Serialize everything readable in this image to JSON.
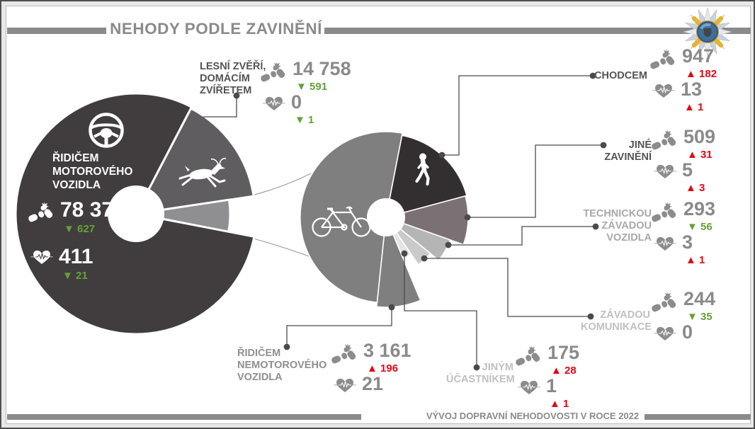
{
  "frame": {
    "title": "NEHODY PODLE ZAVINĚNÍ",
    "footer": "VÝVOJ DOPRAVNÍ NEHODOVOSTI V ROCE 2022"
  },
  "colors": {
    "green": "#65a138",
    "red": "#e30613",
    "number_gray": "#8a8a8a",
    "bar_gray": "#8a8a8a",
    "donut_motor": "#413d3e",
    "donut_lesni": "#5f5d60",
    "donut_rest": "#8f8f92",
    "donut_nemotor": "#7f7f7f",
    "donut_chodcem": "#332e30",
    "donut_jine": "#7b7175",
    "donut_technickou": "#b5b5b5",
    "donut_zavadou": "#cacaca",
    "donut_jinym": "#e4e4e4"
  },
  "stats": {
    "motor": {
      "label": "ŘIDIČEM\nMOTOROVÉHO\nVOZIDLA",
      "accidents": "78 373",
      "accidents_delta": "627",
      "accidents_dir": "down",
      "deaths": "411",
      "deaths_delta": "21",
      "deaths_dir": "down"
    },
    "lesni": {
      "label": "LESNÍ ZVĚŘÍ,\nDOMÁCÍM\nZVÍŘETEM",
      "accidents": "14 758",
      "accidents_delta": "591",
      "accidents_dir": "down",
      "deaths": "0",
      "deaths_delta": "1",
      "deaths_dir": "down"
    },
    "nemotor": {
      "label": "ŘIDIČEM\nNEMOTOROVÉHO\nVOZIDLA",
      "accidents": "3 161",
      "accidents_delta": "196",
      "accidents_dir": "up",
      "deaths": "21",
      "deaths_delta": null,
      "deaths_dir": null
    },
    "chodcem": {
      "label": "CHODCEM",
      "accidents": "947",
      "accidents_delta": "182",
      "accidents_dir": "up",
      "deaths": "13",
      "deaths_delta": "1",
      "deaths_dir": "up"
    },
    "jine": {
      "label": "JINÉ\nZAVINĚNÍ",
      "accidents": "509",
      "accidents_delta": "31",
      "accidents_dir": "up",
      "deaths": "5",
      "deaths_delta": "3",
      "deaths_dir": "up"
    },
    "technickou": {
      "label": "TECHNICKOU\nZÁVADOU\nVOZIDLA",
      "accidents": "293",
      "accidents_delta": "56",
      "accidents_dir": "down",
      "deaths": "3",
      "deaths_delta": "1",
      "deaths_dir": "up"
    },
    "zavadou": {
      "label": "ZÁVADOU\nKOMUNIKACE",
      "accidents": "244",
      "accidents_delta": "35",
      "accidents_dir": "down",
      "deaths": "0",
      "deaths_delta": null,
      "deaths_dir": null
    },
    "jinym": {
      "label": "JINÝM\nÚČASTNÍKEM",
      "accidents": "175",
      "accidents_delta": "28",
      "accidents_dir": "up",
      "deaths": "1",
      "deaths_delta": "1",
      "deaths_dir": "up"
    }
  },
  "chart_data": [
    {
      "type": "pie",
      "id": "donut-all-accidents",
      "title": "NEHODY PODLE ZAVINĚNÍ",
      "slices": [
        {
          "key": "motor",
          "label": "ŘIDIČEM MOTOROVÉHO VOZIDLA",
          "value": 78373,
          "color": "#413d3e"
        },
        {
          "key": "lesni",
          "label": "LESNÍ ZVĚŘÍ, DOMÁCÍM ZVÍŘETEM",
          "value": 14758,
          "color": "#5f5d60"
        },
        {
          "key": "rest",
          "label": "",
          "value": 5329,
          "color": "#8f8f92"
        }
      ]
    },
    {
      "type": "pie",
      "id": "donut-other-causes-detail",
      "title": "",
      "slices": [
        {
          "key": "nemotor",
          "label": "ŘIDIČEM NEMOTOROVÉHO VOZIDLA",
          "value": 3161,
          "color": "#7f7f7f"
        },
        {
          "key": "chodcem",
          "label": "CHODCEM",
          "value": 947,
          "color": "#332e30"
        },
        {
          "key": "jine",
          "label": "JINÉ ZAVINĚNÍ",
          "value": 509,
          "color": "#7b7175"
        },
        {
          "key": "technickou",
          "label": "TECHNICKOU ZÁVADOU VOZIDLA",
          "value": 293,
          "color": "#b5b5b5"
        },
        {
          "key": "zavadou",
          "label": "ZÁVADOU KOMUNIKACE",
          "value": 244,
          "color": "#cacaca"
        },
        {
          "key": "jinym",
          "label": "JINÝM ÚČASTNÍKEM",
          "value": 175,
          "color": "#e4e4e4"
        }
      ]
    }
  ]
}
